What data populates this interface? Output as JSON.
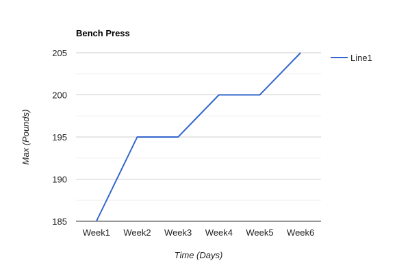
{
  "chart_data": {
    "type": "line",
    "title": "Bench Press",
    "xlabel": "Time (Days)",
    "ylabel": "Max (Pounds)",
    "categories": [
      "Week1",
      "Week2",
      "Week3",
      "Week4",
      "Week5",
      "Week6"
    ],
    "series": [
      {
        "name": "Line1",
        "values": [
          185,
          195,
          195,
          200,
          200,
          205
        ],
        "color": "#3366cc"
      }
    ],
    "ylim": [
      185,
      205
    ],
    "yticks": [
      185,
      190,
      195,
      200,
      205
    ],
    "grid": true,
    "legend": "right"
  }
}
